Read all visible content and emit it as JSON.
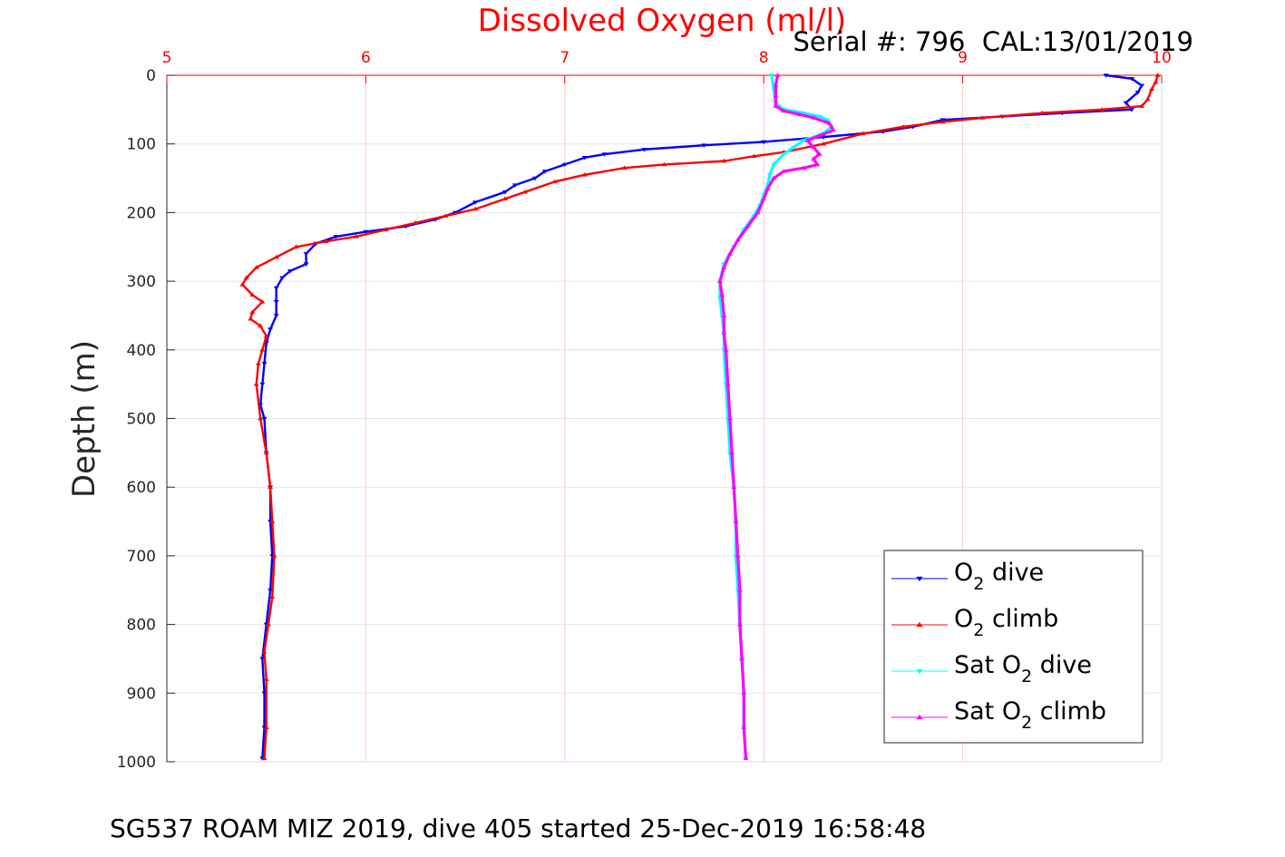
{
  "chart_data": {
    "type": "line",
    "title": "Dissolved Oxygen (ml/l)",
    "subtitle": "Serial #: 796  CAL:13/01/2019",
    "xlabel": "Dissolved Oxygen (ml/l)",
    "ylabel": "Depth (m)",
    "xlim": [
      5,
      10
    ],
    "ylim": [
      0,
      1000
    ],
    "y_reversed": true,
    "x_axis_position": "top",
    "grid": true,
    "x_ticks": [
      5,
      6,
      7,
      8,
      9,
      10
    ],
    "y_ticks": [
      0,
      100,
      200,
      300,
      400,
      500,
      600,
      700,
      800,
      900,
      1000
    ],
    "legend_position": "bottom-right",
    "series": [
      {
        "name": "O2 dive",
        "label_main": "O",
        "label_sub": "2",
        "label_rest": " dive",
        "color": "#0000ff",
        "marker": "down-triangle",
        "points": [
          [
            9.72,
            0
          ],
          [
            9.85,
            5
          ],
          [
            9.9,
            15
          ],
          [
            9.88,
            25
          ],
          [
            9.82,
            40
          ],
          [
            9.85,
            50
          ],
          [
            9.5,
            55
          ],
          [
            9.2,
            60
          ],
          [
            8.9,
            65
          ],
          [
            8.75,
            75
          ],
          [
            8.6,
            82
          ],
          [
            8.3,
            90
          ],
          [
            8.0,
            97
          ],
          [
            7.7,
            102
          ],
          [
            7.4,
            108
          ],
          [
            7.2,
            115
          ],
          [
            7.1,
            120
          ],
          [
            7.0,
            130
          ],
          [
            6.9,
            140
          ],
          [
            6.85,
            150
          ],
          [
            6.75,
            160
          ],
          [
            6.7,
            170
          ],
          [
            6.55,
            185
          ],
          [
            6.45,
            200
          ],
          [
            6.35,
            210
          ],
          [
            6.2,
            220
          ],
          [
            6.0,
            228
          ],
          [
            5.85,
            235
          ],
          [
            5.75,
            245
          ],
          [
            5.7,
            260
          ],
          [
            5.7,
            275
          ],
          [
            5.62,
            285
          ],
          [
            5.58,
            295
          ],
          [
            5.55,
            310
          ],
          [
            5.55,
            330
          ],
          [
            5.55,
            350
          ],
          [
            5.52,
            370
          ],
          [
            5.5,
            390
          ],
          [
            5.49,
            420
          ],
          [
            5.48,
            450
          ],
          [
            5.47,
            480
          ],
          [
            5.49,
            500
          ],
          [
            5.5,
            550
          ],
          [
            5.52,
            600
          ],
          [
            5.52,
            650
          ],
          [
            5.53,
            700
          ],
          [
            5.52,
            750
          ],
          [
            5.5,
            800
          ],
          [
            5.48,
            850
          ],
          [
            5.49,
            900
          ],
          [
            5.49,
            950
          ],
          [
            5.48,
            995
          ]
        ]
      },
      {
        "name": "O2 climb",
        "label_main": "O",
        "label_sub": "2",
        "label_rest": " climb",
        "color": "#ff0000",
        "marker": "up-triangle",
        "points": [
          [
            9.98,
            0
          ],
          [
            9.97,
            10
          ],
          [
            9.95,
            20
          ],
          [
            9.93,
            35
          ],
          [
            9.9,
            45
          ],
          [
            9.7,
            50
          ],
          [
            9.4,
            55
          ],
          [
            9.1,
            62
          ],
          [
            8.9,
            68
          ],
          [
            8.7,
            75
          ],
          [
            8.5,
            85
          ],
          [
            8.3,
            100
          ],
          [
            8.1,
            112
          ],
          [
            7.95,
            118
          ],
          [
            7.8,
            125
          ],
          [
            7.5,
            130
          ],
          [
            7.3,
            135
          ],
          [
            7.1,
            145
          ],
          [
            6.95,
            155
          ],
          [
            6.8,
            170
          ],
          [
            6.7,
            180
          ],
          [
            6.55,
            195
          ],
          [
            6.4,
            205
          ],
          [
            6.25,
            215
          ],
          [
            6.1,
            225
          ],
          [
            5.95,
            235
          ],
          [
            5.8,
            242
          ],
          [
            5.65,
            250
          ],
          [
            5.55,
            265
          ],
          [
            5.45,
            280
          ],
          [
            5.4,
            295
          ],
          [
            5.38,
            305
          ],
          [
            5.43,
            320
          ],
          [
            5.48,
            330
          ],
          [
            5.43,
            345
          ],
          [
            5.42,
            355
          ],
          [
            5.47,
            365
          ],
          [
            5.5,
            380
          ],
          [
            5.48,
            400
          ],
          [
            5.46,
            420
          ],
          [
            5.45,
            450
          ],
          [
            5.47,
            500
          ],
          [
            5.5,
            550
          ],
          [
            5.52,
            600
          ],
          [
            5.53,
            650
          ],
          [
            5.54,
            700
          ],
          [
            5.53,
            760
          ],
          [
            5.51,
            800
          ],
          [
            5.49,
            840
          ],
          [
            5.5,
            880
          ],
          [
            5.5,
            950
          ],
          [
            5.49,
            995
          ]
        ]
      },
      {
        "name": "Sat O2 dive",
        "label_main": "Sat O",
        "label_sub": "2",
        "label_rest": " dive",
        "color": "#00ffff",
        "marker": "down-triangle",
        "points": [
          [
            8.04,
            0
          ],
          [
            8.05,
            20
          ],
          [
            8.06,
            40
          ],
          [
            8.1,
            50
          ],
          [
            8.2,
            55
          ],
          [
            8.28,
            60
          ],
          [
            8.32,
            65
          ],
          [
            8.34,
            75
          ],
          [
            8.3,
            85
          ],
          [
            8.2,
            95
          ],
          [
            8.15,
            105
          ],
          [
            8.1,
            115
          ],
          [
            8.05,
            130
          ],
          [
            8.03,
            145
          ],
          [
            8.02,
            160
          ],
          [
            8.0,
            175
          ],
          [
            7.98,
            190
          ],
          [
            7.95,
            205
          ],
          [
            7.9,
            225
          ],
          [
            7.85,
            250
          ],
          [
            7.8,
            275
          ],
          [
            7.78,
            300
          ],
          [
            7.78,
            325
          ],
          [
            7.79,
            350
          ],
          [
            7.8,
            375
          ],
          [
            7.8,
            400
          ],
          [
            7.81,
            450
          ],
          [
            7.82,
            500
          ],
          [
            7.83,
            550
          ],
          [
            7.85,
            600
          ],
          [
            7.86,
            650
          ],
          [
            7.86,
            700
          ],
          [
            7.87,
            750
          ],
          [
            7.88,
            800
          ],
          [
            7.89,
            850
          ],
          [
            7.9,
            900
          ],
          [
            7.9,
            950
          ],
          [
            7.91,
            995
          ]
        ]
      },
      {
        "name": "Sat O2 climb",
        "label_main": "Sat O",
        "label_sub": "2",
        "label_rest": " climb",
        "color": "#ff00ff",
        "marker": "up-triangle",
        "points": [
          [
            8.07,
            0
          ],
          [
            8.06,
            15
          ],
          [
            8.06,
            30
          ],
          [
            8.06,
            45
          ],
          [
            8.1,
            52
          ],
          [
            8.18,
            57
          ],
          [
            8.25,
            62
          ],
          [
            8.33,
            70
          ],
          [
            8.35,
            80
          ],
          [
            8.28,
            88
          ],
          [
            8.22,
            95
          ],
          [
            8.25,
            105
          ],
          [
            8.28,
            115
          ],
          [
            8.25,
            122
          ],
          [
            8.27,
            130
          ],
          [
            8.2,
            135
          ],
          [
            8.1,
            140
          ],
          [
            8.05,
            150
          ],
          [
            8.02,
            165
          ],
          [
            8.0,
            180
          ],
          [
            7.97,
            200
          ],
          [
            7.92,
            220
          ],
          [
            7.87,
            240
          ],
          [
            7.83,
            260
          ],
          [
            7.8,
            280
          ],
          [
            7.78,
            300
          ],
          [
            7.79,
            320
          ],
          [
            7.8,
            350
          ],
          [
            7.8,
            375
          ],
          [
            7.81,
            400
          ],
          [
            7.82,
            450
          ],
          [
            7.83,
            500
          ],
          [
            7.84,
            550
          ],
          [
            7.85,
            600
          ],
          [
            7.86,
            650
          ],
          [
            7.87,
            700
          ],
          [
            7.88,
            750
          ],
          [
            7.88,
            800
          ],
          [
            7.89,
            850
          ],
          [
            7.9,
            900
          ],
          [
            7.9,
            950
          ],
          [
            7.91,
            995
          ]
        ]
      }
    ]
  },
  "footer": "SG537 ROAM MIZ 2019, dive 405 started 25-Dec-2019 16:58:48",
  "colors": {
    "title": "#ff0000",
    "x_tick": "#ff0000",
    "grid": "#e4e4e4",
    "x_grid": "#ffc8c8"
  }
}
